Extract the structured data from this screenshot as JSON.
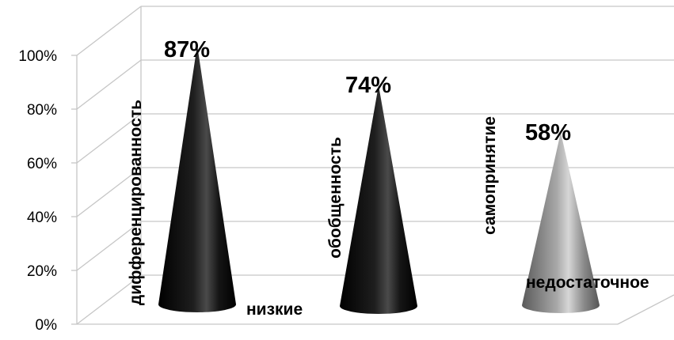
{
  "chart_data": {
    "type": "bar",
    "style": "3d-cone",
    "categories": [
      "дифференцированность",
      "обобщенность",
      "самопринятие"
    ],
    "values": [
      87,
      74,
      58
    ],
    "value_labels": [
      "87%",
      "74%",
      "58%"
    ],
    "y_ticks": [
      "0%",
      "20%",
      "40%",
      "60%",
      "80%",
      "100%"
    ],
    "ylim": [
      0,
      100
    ],
    "grid": true,
    "legend": "none",
    "annotations": [
      "низкие",
      "недостаточное"
    ],
    "colors": [
      "#0a0a0a",
      "#0a0a0a",
      "#9a9a9a"
    ]
  }
}
